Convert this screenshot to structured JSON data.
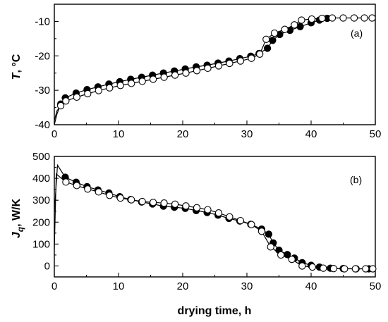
{
  "chart_data": [
    {
      "type": "line",
      "panel_label": "(a)",
      "ylabel_main": "T",
      "ylabel_rest": ", °C",
      "xlabel": "",
      "xlim": [
        0,
        50
      ],
      "ylim": [
        -40,
        -5
      ],
      "xticks": [
        "0",
        "10",
        "20",
        "30",
        "40",
        "50"
      ],
      "yticks": [
        "-40",
        "-30",
        "-20",
        "-10"
      ],
      "ytick_values": [
        -40,
        -30,
        -20,
        -10
      ],
      "series": [
        {
          "marker": "filled-circle",
          "points": [
            [
              0,
              -40
            ],
            [
              0.4,
              -37
            ],
            [
              1,
              -34
            ],
            [
              1.7,
              -32.2
            ],
            [
              3.4,
              -30.8
            ],
            [
              5.1,
              -29.8
            ],
            [
              6.8,
              -29
            ],
            [
              8.5,
              -28.2
            ],
            [
              10.2,
              -27.5
            ],
            [
              11.9,
              -26.8
            ],
            [
              13.6,
              -26.2
            ],
            [
              15.3,
              -25.6
            ],
            [
              17,
              -25
            ],
            [
              18.7,
              -24.4
            ],
            [
              20.4,
              -23.8
            ],
            [
              22.1,
              -23.2
            ],
            [
              23.8,
              -22.7
            ],
            [
              25.5,
              -22.1
            ],
            [
              27.2,
              -21.5
            ],
            [
              28.9,
              -20.8
            ],
            [
              30.6,
              -20.1
            ],
            [
              31.9,
              -19.3
            ],
            [
              33.2,
              -17.8
            ],
            [
              34,
              -15.5
            ],
            [
              35.1,
              -13.8
            ],
            [
              36.7,
              -12.6
            ],
            [
              38.3,
              -11.5
            ],
            [
              40,
              -10.4
            ],
            [
              41.3,
              -9.6
            ],
            [
              42.5,
              -9.1
            ]
          ]
        },
        {
          "marker": "open-circle",
          "points": [
            [
              0,
              -38.8
            ],
            [
              0.4,
              -36
            ],
            [
              1,
              -34.5
            ],
            [
              1.8,
              -33.1
            ],
            [
              3.5,
              -32
            ],
            [
              5.2,
              -31
            ],
            [
              6.9,
              -30.1
            ],
            [
              8.6,
              -29.3
            ],
            [
              10.3,
              -28.6
            ],
            [
              12,
              -28
            ],
            [
              13.7,
              -27.4
            ],
            [
              15.4,
              -26.8
            ],
            [
              17.1,
              -26.2
            ],
            [
              18.8,
              -25.6
            ],
            [
              20.5,
              -25
            ],
            [
              22.2,
              -24.3
            ],
            [
              23.9,
              -23.6
            ],
            [
              25.6,
              -22.9
            ],
            [
              27.3,
              -22.2
            ],
            [
              29,
              -21.5
            ],
            [
              30.7,
              -20.7
            ],
            [
              32,
              -19.5
            ],
            [
              33,
              -15.2
            ],
            [
              34.3,
              -13.4
            ],
            [
              35.9,
              -12.3
            ],
            [
              37.4,
              -11
            ],
            [
              38.5,
              -9.6
            ],
            [
              40.1,
              -9.3
            ],
            [
              41.7,
              -9.1
            ],
            [
              43.3,
              -9
            ],
            [
              45,
              -9
            ],
            [
              46.7,
              -9
            ],
            [
              48.3,
              -9
            ],
            [
              49.5,
              -9
            ]
          ]
        }
      ]
    },
    {
      "type": "line",
      "panel_label": "(b)",
      "ylabel_main": "J",
      "ylabel_sub": "q",
      "ylabel_rest": ", W/K",
      "xlabel": "drying time, h",
      "xlim": [
        0,
        50
      ],
      "ylim": [
        -50,
        500
      ],
      "xticks": [
        "0",
        "10",
        "20",
        "30",
        "40",
        "50"
      ],
      "yticks": [
        "0",
        "100",
        "200",
        "300",
        "400",
        "500"
      ],
      "ytick_values": [
        0,
        100,
        200,
        300,
        400,
        500
      ],
      "series": [
        {
          "marker": "filled-circle",
          "points": [
            [
              0,
              245
            ],
            [
              0.5,
              460
            ],
            [
              1.7,
              405
            ],
            [
              3.4,
              382
            ],
            [
              5.1,
              362
            ],
            [
              6.8,
              347
            ],
            [
              8.5,
              333
            ],
            [
              10.2,
              316
            ],
            [
              11.9,
              303
            ],
            [
              13.6,
              292
            ],
            [
              15.3,
              283
            ],
            [
              17,
              273
            ],
            [
              18.7,
              268
            ],
            [
              20.4,
              263
            ],
            [
              22.1,
              253
            ],
            [
              23.8,
              244
            ],
            [
              25.5,
              232
            ],
            [
              27.2,
              217
            ],
            [
              28.9,
              205
            ],
            [
              30.6,
              190
            ],
            [
              32.3,
              168
            ],
            [
              33.4,
              145
            ],
            [
              34.1,
              105
            ],
            [
              35,
              72
            ],
            [
              36.3,
              52
            ],
            [
              37.4,
              36
            ],
            [
              38.6,
              15
            ],
            [
              40,
              3
            ],
            [
              41.3,
              -5
            ],
            [
              43,
              -10
            ],
            [
              45,
              -12
            ],
            [
              47,
              -13
            ],
            [
              49,
              -13
            ]
          ]
        },
        {
          "marker": "open-circle",
          "points": [
            [
              0,
              75
            ],
            [
              0.3,
              420
            ],
            [
              1.8,
              383
            ],
            [
              3.5,
              367
            ],
            [
              5.2,
              351
            ],
            [
              6.9,
              338
            ],
            [
              8.6,
              322
            ],
            [
              10.3,
              310
            ],
            [
              12,
              302
            ],
            [
              13.7,
              294
            ],
            [
              15.4,
              290
            ],
            [
              17.1,
              287
            ],
            [
              18.8,
              282
            ],
            [
              20.5,
              274
            ],
            [
              22.2,
              266
            ],
            [
              23.9,
              257
            ],
            [
              25.6,
              242
            ],
            [
              27.3,
              224
            ],
            [
              29,
              207
            ],
            [
              30.7,
              189
            ],
            [
              32.3,
              158
            ],
            [
              33.7,
              87
            ],
            [
              35.3,
              50
            ],
            [
              37,
              30
            ],
            [
              38.6,
              0
            ],
            [
              40.2,
              -5
            ],
            [
              41.9,
              -10
            ],
            [
              43.5,
              -12
            ],
            [
              45.2,
              -13
            ],
            [
              46.9,
              -13
            ],
            [
              48.5,
              -13
            ],
            [
              49.6,
              -13
            ]
          ]
        }
      ]
    }
  ]
}
